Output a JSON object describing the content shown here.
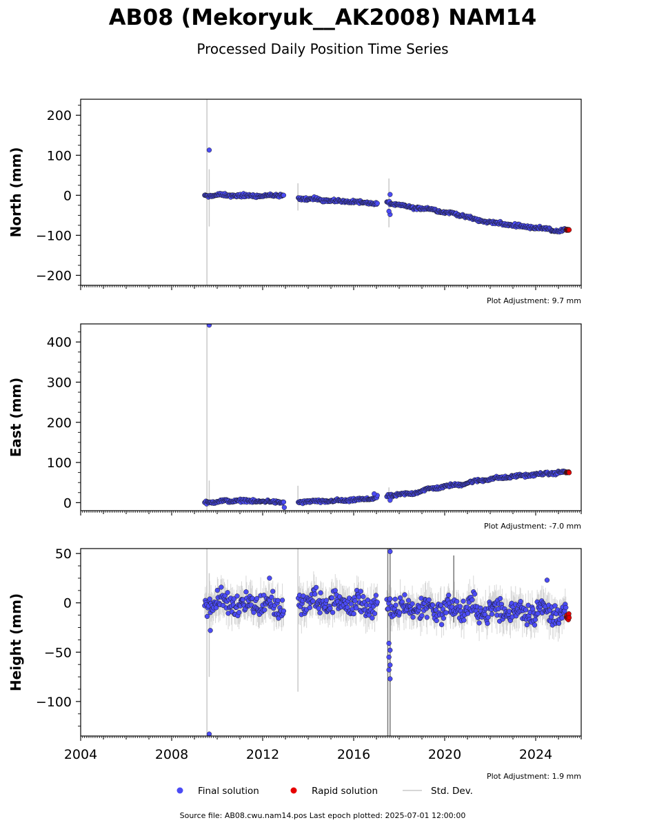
{
  "header": {
    "title": "AB08 (Mekoryuk__AK2008) NAM14",
    "subtitle": "Processed Daily Position Time Series"
  },
  "legend": {
    "final": "Final solution",
    "rapid": "Rapid solution",
    "std": "Std. Dev."
  },
  "colors": {
    "final": "#4b4bf5",
    "rapid": "#e60000",
    "std": "#b5b5b5",
    "edge": "#1a1a1a"
  },
  "footer": {
    "source": "Source file: AB08.cwu.nam14.pos  Last epoch plotted: 2025-07-01 12:00:00"
  },
  "chart_data": [
    {
      "type": "scatter",
      "ylabel": "North (mm)",
      "xlim": [
        2004.0,
        2026.0
      ],
      "ylim": [
        -225,
        240
      ],
      "yticks": [
        200,
        100,
        0,
        -100,
        -200
      ],
      "ytick_labels": [
        "200",
        "100",
        "0",
        "−100",
        "−200"
      ],
      "adjustment": "Plot Adjustment: 9.7 mm",
      "trend": [
        [
          2009.5,
          -1
        ],
        [
          2010.0,
          1
        ],
        [
          2011.0,
          -1
        ],
        [
          2012.0,
          -2
        ],
        [
          2012.9,
          0
        ],
        [
          2013.6,
          -7
        ],
        [
          2014.5,
          -11
        ],
        [
          2015.5,
          -15
        ],
        [
          2016.5,
          -18
        ],
        [
          2017.0,
          -21
        ],
        [
          2017.5,
          -18
        ],
        [
          2018.0,
          -25
        ],
        [
          2018.5,
          -30
        ],
        [
          2019.0,
          -33
        ],
        [
          2019.5,
          -35
        ],
        [
          2020.0,
          -43
        ],
        [
          2020.5,
          -46
        ],
        [
          2021.0,
          -55
        ],
        [
          2021.5,
          -63
        ],
        [
          2022.0,
          -67
        ],
        [
          2022.5,
          -71
        ],
        [
          2023.0,
          -75
        ],
        [
          2023.5,
          -78
        ],
        [
          2024.0,
          -81
        ],
        [
          2024.5,
          -84
        ],
        [
          2025.0,
          -90
        ],
        [
          2025.4,
          -86
        ]
      ],
      "noise": 3,
      "outliers": [
        [
          2009.65,
          113
        ],
        [
          2017.6,
          -48
        ],
        [
          2017.55,
          -40
        ],
        [
          2017.6,
          2
        ]
      ],
      "rapid_range": [
        2025.35,
        2025.47
      ],
      "std_big": [
        [
          2009.55,
          -225,
          240
        ],
        [
          2009.65,
          -78,
          65
        ],
        [
          2013.55,
          -38,
          30
        ],
        [
          2017.55,
          -80,
          42
        ]
      ],
      "std_small": 6
    },
    {
      "type": "scatter",
      "ylabel": "East (mm)",
      "xlim": [
        2004.0,
        2026.0
      ],
      "ylim": [
        -20,
        445
      ],
      "yticks": [
        400,
        300,
        200,
        100,
        0
      ],
      "ytick_labels": [
        "400",
        "300",
        "200",
        "100",
        "0"
      ],
      "adjustment": "Plot Adjustment: -7.0 mm",
      "trend": [
        [
          2009.5,
          0
        ],
        [
          2010.0,
          3
        ],
        [
          2011.0,
          5
        ],
        [
          2012.0,
          3
        ],
        [
          2012.9,
          1
        ],
        [
          2013.6,
          2
        ],
        [
          2014.5,
          3
        ],
        [
          2015.5,
          5
        ],
        [
          2016.5,
          8
        ],
        [
          2017.0,
          13
        ],
        [
          2017.5,
          17
        ],
        [
          2018.0,
          20
        ],
        [
          2018.5,
          22
        ],
        [
          2019.0,
          30
        ],
        [
          2019.5,
          36
        ],
        [
          2020.0,
          40
        ],
        [
          2020.5,
          44
        ],
        [
          2021.0,
          49
        ],
        [
          2021.5,
          55
        ],
        [
          2022.0,
          59
        ],
        [
          2022.5,
          62
        ],
        [
          2023.0,
          65
        ],
        [
          2023.5,
          68
        ],
        [
          2024.0,
          70
        ],
        [
          2024.5,
          72
        ],
        [
          2025.0,
          75
        ],
        [
          2025.4,
          76
        ]
      ],
      "noise": 3,
      "outliers": [
        [
          2009.65,
          442
        ],
        [
          2012.95,
          -12
        ],
        [
          2017.6,
          6
        ],
        [
          2016.9,
          22
        ]
      ],
      "rapid_range": [
        2025.35,
        2025.47
      ],
      "std_big": [
        [
          2009.55,
          -20,
          445
        ],
        [
          2009.65,
          -10,
          55
        ],
        [
          2013.55,
          -5,
          42
        ],
        [
          2017.55,
          0,
          38
        ]
      ],
      "std_small": 5
    },
    {
      "type": "scatter",
      "ylabel": "Height (mm)",
      "xlim": [
        2004.0,
        2026.0
      ],
      "ylim": [
        -135,
        55
      ],
      "yticks": [
        50,
        0,
        -50,
        -100
      ],
      "ytick_labels": [
        "50",
        "0",
        "−50",
        "−100"
      ],
      "xticks": [
        2004,
        2008,
        2012,
        2016,
        2020,
        2024
      ],
      "xtick_labels": [
        "2004",
        "2008",
        "2012",
        "2016",
        "2020",
        "2024"
      ],
      "adjustment": "Plot Adjustment: 1.9 mm",
      "trend": [
        [
          2009.5,
          0
        ],
        [
          2010.5,
          0
        ],
        [
          2011.5,
          0
        ],
        [
          2012.9,
          -3
        ],
        [
          2013.6,
          0
        ],
        [
          2015.0,
          0
        ],
        [
          2016.5,
          -2
        ],
        [
          2017.0,
          -3
        ],
        [
          2017.5,
          -5
        ],
        [
          2019.0,
          -5
        ],
        [
          2020.0,
          -6
        ],
        [
          2021.0,
          -6
        ],
        [
          2022.0,
          -8
        ],
        [
          2023.0,
          -8
        ],
        [
          2024.0,
          -8
        ],
        [
          2025.0,
          -10
        ],
        [
          2025.4,
          -14
        ]
      ],
      "noise": 10,
      "outliers": [
        [
          2009.65,
          -133
        ],
        [
          2017.6,
          52
        ],
        [
          2017.55,
          -41
        ],
        [
          2017.6,
          -48
        ],
        [
          2017.55,
          -55
        ],
        [
          2017.6,
          -63
        ],
        [
          2017.55,
          -68
        ],
        [
          2017.6,
          -77
        ],
        [
          2024.5,
          23
        ],
        [
          2012.3,
          25
        ],
        [
          2009.7,
          -28
        ]
      ],
      "rapid_range": [
        2025.35,
        2025.47
      ],
      "std_big": [
        [
          2009.55,
          -135,
          55
        ],
        [
          2009.65,
          -75,
          30
        ],
        [
          2013.55,
          -90,
          55
        ],
        [
          2017.5,
          -135,
          55
        ],
        [
          2017.6,
          -135,
          55
        ],
        [
          2020.4,
          -20,
          48
        ]
      ],
      "std_small": 14
    }
  ]
}
